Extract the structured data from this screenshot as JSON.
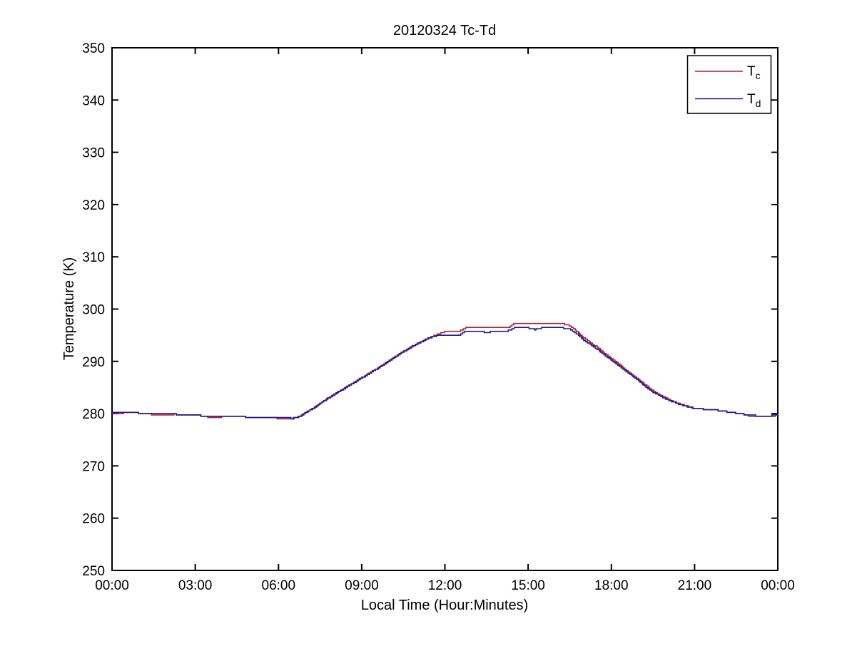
{
  "figure": {
    "background": "#ffffff",
    "axis_color": "#000000"
  },
  "chart_data": {
    "type": "line",
    "title": "20120324 Tc-Td",
    "xlabel": "Local Time (Hour:Minutes)",
    "ylabel": "Temperature (K)",
    "xlim_hours": [
      0,
      24
    ],
    "ylim": [
      250,
      350
    ],
    "grid": false,
    "legend_position": "top-right",
    "x_tick_hours": [
      0,
      3,
      6,
      9,
      12,
      15,
      18,
      21,
      24
    ],
    "x_tick_labels": [
      "00:00",
      "03:00",
      "06:00",
      "09:00",
      "12:00",
      "15:00",
      "18:00",
      "21:00",
      "00:00"
    ],
    "y_ticks": [
      250,
      260,
      270,
      280,
      290,
      300,
      310,
      320,
      330,
      340,
      350
    ],
    "x_hours": [
      0,
      0.25,
      0.5,
      0.75,
      1,
      1.25,
      1.5,
      1.75,
      2,
      2.25,
      2.5,
      2.75,
      3,
      3.25,
      3.5,
      3.75,
      4,
      4.25,
      4.5,
      4.75,
      5,
      5.25,
      5.5,
      5.75,
      6,
      6.25,
      6.5,
      6.75,
      7,
      7.25,
      7.5,
      7.75,
      8,
      8.25,
      8.5,
      8.75,
      9,
      9.25,
      9.5,
      9.75,
      10,
      10.25,
      10.5,
      10.75,
      11,
      11.25,
      11.5,
      11.75,
      12,
      12.25,
      12.5,
      12.75,
      13,
      13.25,
      13.5,
      13.75,
      14,
      14.25,
      14.5,
      14.75,
      15,
      15.25,
      15.5,
      15.75,
      16,
      16.25,
      16.5,
      16.75,
      17,
      17.25,
      17.5,
      17.75,
      18,
      18.25,
      18.5,
      18.75,
      19,
      19.25,
      19.5,
      19.75,
      20,
      20.25,
      20.5,
      20.75,
      21,
      21.25,
      21.5,
      21.75,
      22,
      22.25,
      22.5,
      22.75,
      23,
      23.25,
      23.5,
      23.75,
      24
    ],
    "series": [
      {
        "name": "Tc",
        "label_main": "T",
        "label_sub": "c",
        "color": "#b02030",
        "values": [
          280.0,
          280.0,
          280.2,
          280.2,
          280.1,
          280.1,
          279.7,
          279.7,
          279.7,
          279.9,
          279.8,
          279.8,
          279.7,
          279.6,
          279.3,
          279.3,
          279.4,
          279.4,
          279.4,
          279.4,
          279.3,
          279.3,
          279.3,
          279.2,
          279.1,
          279.1,
          279.0,
          279.5,
          280.3,
          281.1,
          282.0,
          282.9,
          283.7,
          284.5,
          285.3,
          286.1,
          286.9,
          287.7,
          288.5,
          289.3,
          290.2,
          291.1,
          291.9,
          292.7,
          293.4,
          294.1,
          294.7,
          295.2,
          295.7,
          295.7,
          295.7,
          296.4,
          296.4,
          296.4,
          296.4,
          296.4,
          296.4,
          296.4,
          297.2,
          297.2,
          297.2,
          297.2,
          297.2,
          297.2,
          297.2,
          297.2,
          296.8,
          295.8,
          294.5,
          293.6,
          292.7,
          291.6,
          290.6,
          289.6,
          288.5,
          287.5,
          286.5,
          285.4,
          284.4,
          283.6,
          282.9,
          282.3,
          281.8,
          281.4,
          281.0,
          280.9,
          280.8,
          280.7,
          280.5,
          280.3,
          280.1,
          279.9,
          279.5,
          279.4,
          279.4,
          279.4,
          279.8
        ]
      },
      {
        "name": "Td",
        "label_main": "T",
        "label_sub": "d",
        "color": "#1a1a8f",
        "values": [
          280.2,
          280.2,
          280.2,
          280.2,
          280.1,
          280.1,
          280.0,
          280.0,
          280.0,
          279.9,
          279.8,
          279.8,
          279.7,
          279.6,
          279.6,
          279.5,
          279.5,
          279.4,
          279.4,
          279.4,
          279.3,
          279.3,
          279.3,
          279.3,
          279.2,
          279.2,
          279.1,
          279.4,
          280.2,
          281.0,
          281.9,
          282.8,
          283.6,
          284.4,
          285.2,
          286.0,
          286.8,
          287.6,
          288.4,
          289.2,
          290.1,
          291.0,
          291.8,
          292.6,
          293.3,
          294.0,
          294.6,
          295.0,
          295.0,
          294.9,
          295.0,
          295.8,
          295.8,
          295.8,
          295.5,
          295.8,
          295.8,
          295.8,
          296.4,
          296.4,
          296.4,
          296.1,
          296.4,
          296.4,
          296.4,
          296.4,
          296.2,
          295.3,
          294.1,
          293.2,
          292.3,
          291.2,
          290.2,
          289.2,
          288.2,
          287.2,
          286.2,
          285.1,
          284.1,
          283.4,
          282.7,
          282.2,
          281.7,
          281.3,
          281.0,
          280.9,
          280.8,
          280.7,
          280.5,
          280.3,
          280.1,
          279.9,
          279.7,
          279.6,
          279.6,
          279.6,
          280.0
        ]
      }
    ]
  }
}
